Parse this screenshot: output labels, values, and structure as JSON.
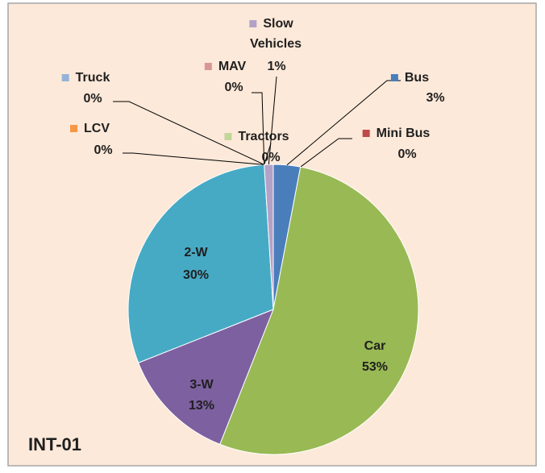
{
  "chart_data": {
    "type": "pie",
    "annotation": "INT-01",
    "categories": [
      "Bus",
      "Mini Bus",
      "Car",
      "3-W",
      "2-W",
      "LCV",
      "Truck",
      "MAV",
      "Tractors",
      "Slow Vehicles"
    ],
    "values": [
      3,
      0,
      53,
      13,
      30,
      0,
      0,
      0,
      0,
      1
    ],
    "value_labels": [
      "3%",
      "0%",
      "53%",
      "13%",
      "30%",
      "0%",
      "0%",
      "0%",
      "0%",
      "1%"
    ],
    "colors": [
      "#4a7ebb",
      "#be4b48",
      "#98b954",
      "#7d60a0",
      "#46aac5",
      "#f79646",
      "#95b3d7",
      "#d99694",
      "#c3d69b",
      "#b3a2c7"
    ]
  }
}
